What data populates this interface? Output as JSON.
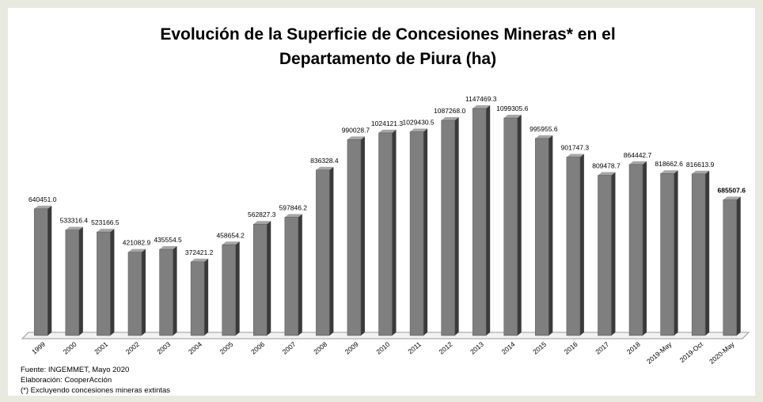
{
  "chart_data": {
    "type": "bar3d",
    "title": [
      "Evolución de la Superficie de Concesiones Mineras* en el",
      "Departamento de Piura (ha)"
    ],
    "categories": [
      "1999",
      "2000",
      "2001",
      "2002",
      "2003",
      "2004",
      "2005",
      "2006",
      "2007",
      "2008",
      "2009",
      "2010",
      "2011",
      "2012",
      "2013",
      "2014",
      "2015",
      "2016",
      "2017",
      "2018",
      "2019-May",
      "2019-Oct",
      "2020-May"
    ],
    "values": [
      640451.0,
      533316.4,
      523166.5,
      421082.9,
      435554.5,
      372421.2,
      458654.2,
      562827.3,
      597846.2,
      836328.4,
      990028.7,
      1024121.3,
      1029430.5,
      1087268.0,
      1147469.3,
      1099305.6,
      995955.6,
      901747.3,
      809478.7,
      864442.7,
      818662.6,
      816613.9,
      685507.6
    ],
    "value_labels": [
      "640451.0",
      "533316.4",
      "523166.5",
      "421082.9",
      "435554.5",
      "372421.2",
      "458654.2",
      "562827.3",
      "597846.2",
      "836328.4",
      "990028.7",
      "1024121.3",
      "1029430.5",
      "1087268.0",
      "1147469.3",
      "1099305.6",
      "995955.6",
      "901747.3",
      "809478.7",
      "864442.7",
      "818662.6",
      "816613.9",
      "685507.6"
    ],
    "color": "#7f7f7f",
    "notes": [
      "Fuente: INGEMMET, Mayo 2020",
      "Elaboración: CooperAcción",
      "(*) Excluyendo concesiones mineras extintas"
    ]
  }
}
